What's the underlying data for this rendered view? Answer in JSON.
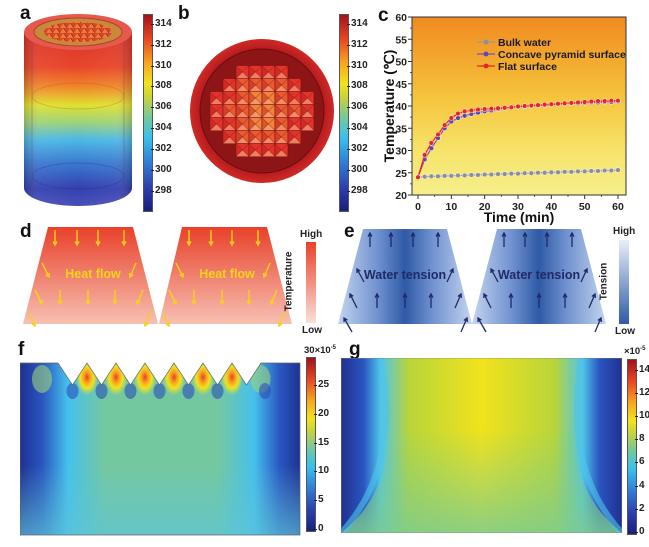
{
  "panels": {
    "a": {
      "label": "a",
      "colorbar_ticks": [
        "314",
        "312",
        "310",
        "308",
        "306",
        "304",
        "302",
        "300",
        "298"
      ]
    },
    "b": {
      "label": "b",
      "colorbar_ticks": [
        "314",
        "312",
        "310",
        "308",
        "306",
        "304",
        "302",
        "300",
        "298"
      ]
    },
    "c": {
      "label": "c"
    },
    "d": {
      "label": "d",
      "text": "Heat flow",
      "legend_title": "Temperature",
      "legend_high": "High",
      "legend_low": "Low",
      "colors": {
        "high": "#e8412a",
        "low": "#f7c0b2",
        "arrow": "#f5d21a"
      }
    },
    "e": {
      "label": "e",
      "text": "Water tension",
      "legend_title": "Tension",
      "legend_high": "High",
      "legend_low": "Low",
      "colors": {
        "high": "#e6eef8",
        "low": "#2f5aa6",
        "arrow": "#1f2a66"
      }
    },
    "f": {
      "label": "f",
      "colorbar_top": "30×10",
      "colorbar_exp": "-5",
      "colorbar_ticks": [
        "25",
        "20",
        "15",
        "10",
        "5",
        "0"
      ]
    },
    "g": {
      "label": "g",
      "colorbar_top": "×10",
      "colorbar_exp": "-5",
      "colorbar_ticks": [
        "14",
        "12",
        "10",
        "8",
        "6",
        "4",
        "2",
        "0"
      ]
    }
  },
  "chart_data": {
    "type": "line",
    "title": "",
    "xlabel": "Time (min)",
    "ylabel": "Temperature (℃)",
    "xlim": [
      0,
      60
    ],
    "ylim": [
      20,
      60
    ],
    "xticks": [
      0,
      10,
      20,
      30,
      40,
      50,
      60
    ],
    "yticks": [
      20,
      25,
      30,
      35,
      40,
      45,
      50,
      55,
      60
    ],
    "legend_position": "top-center",
    "x": [
      0,
      2,
      4,
      6,
      8,
      10,
      12,
      14,
      16,
      18,
      20,
      22,
      24,
      26,
      28,
      30,
      32,
      34,
      36,
      38,
      40,
      42,
      44,
      46,
      48,
      50,
      52,
      54,
      56,
      58,
      60
    ],
    "series": [
      {
        "name": "Bulk water",
        "color": "#9a9a9a",
        "marker_color": "#8a8ea0",
        "values": [
          24.0,
          24.1,
          24.2,
          24.2,
          24.3,
          24.3,
          24.4,
          24.4,
          24.5,
          24.5,
          24.6,
          24.6,
          24.7,
          24.7,
          24.8,
          24.8,
          24.9,
          24.9,
          25.0,
          25.0,
          25.1,
          25.1,
          25.2,
          25.2,
          25.3,
          25.3,
          25.4,
          25.4,
          25.5,
          25.5,
          25.6
        ]
      },
      {
        "name": "Concave pyramid surface",
        "color": "#7a4fc4",
        "marker_color": "#5a48b8",
        "values": [
          24.0,
          28.0,
          30.5,
          32.8,
          35.0,
          36.5,
          37.3,
          37.8,
          38.2,
          38.5,
          38.8,
          39.0,
          39.3,
          39.5,
          39.7,
          39.8,
          39.9,
          40.0,
          40.1,
          40.2,
          40.3,
          40.4,
          40.5,
          40.6,
          40.6,
          40.7,
          40.8,
          40.8,
          40.9,
          40.9,
          41.0
        ]
      },
      {
        "name": "Flat surface",
        "color": "#e8262a",
        "marker_color": "#e8262a",
        "values": [
          24.0,
          29.0,
          31.7,
          33.6,
          35.7,
          37.3,
          38.3,
          38.8,
          39.0,
          39.2,
          39.3,
          39.4,
          39.5,
          39.6,
          39.7,
          39.9,
          40.0,
          40.1,
          40.2,
          40.3,
          40.4,
          40.5,
          40.6,
          40.7,
          40.8,
          40.9,
          41.0,
          41.1,
          41.1,
          41.2,
          41.2
        ]
      }
    ]
  }
}
